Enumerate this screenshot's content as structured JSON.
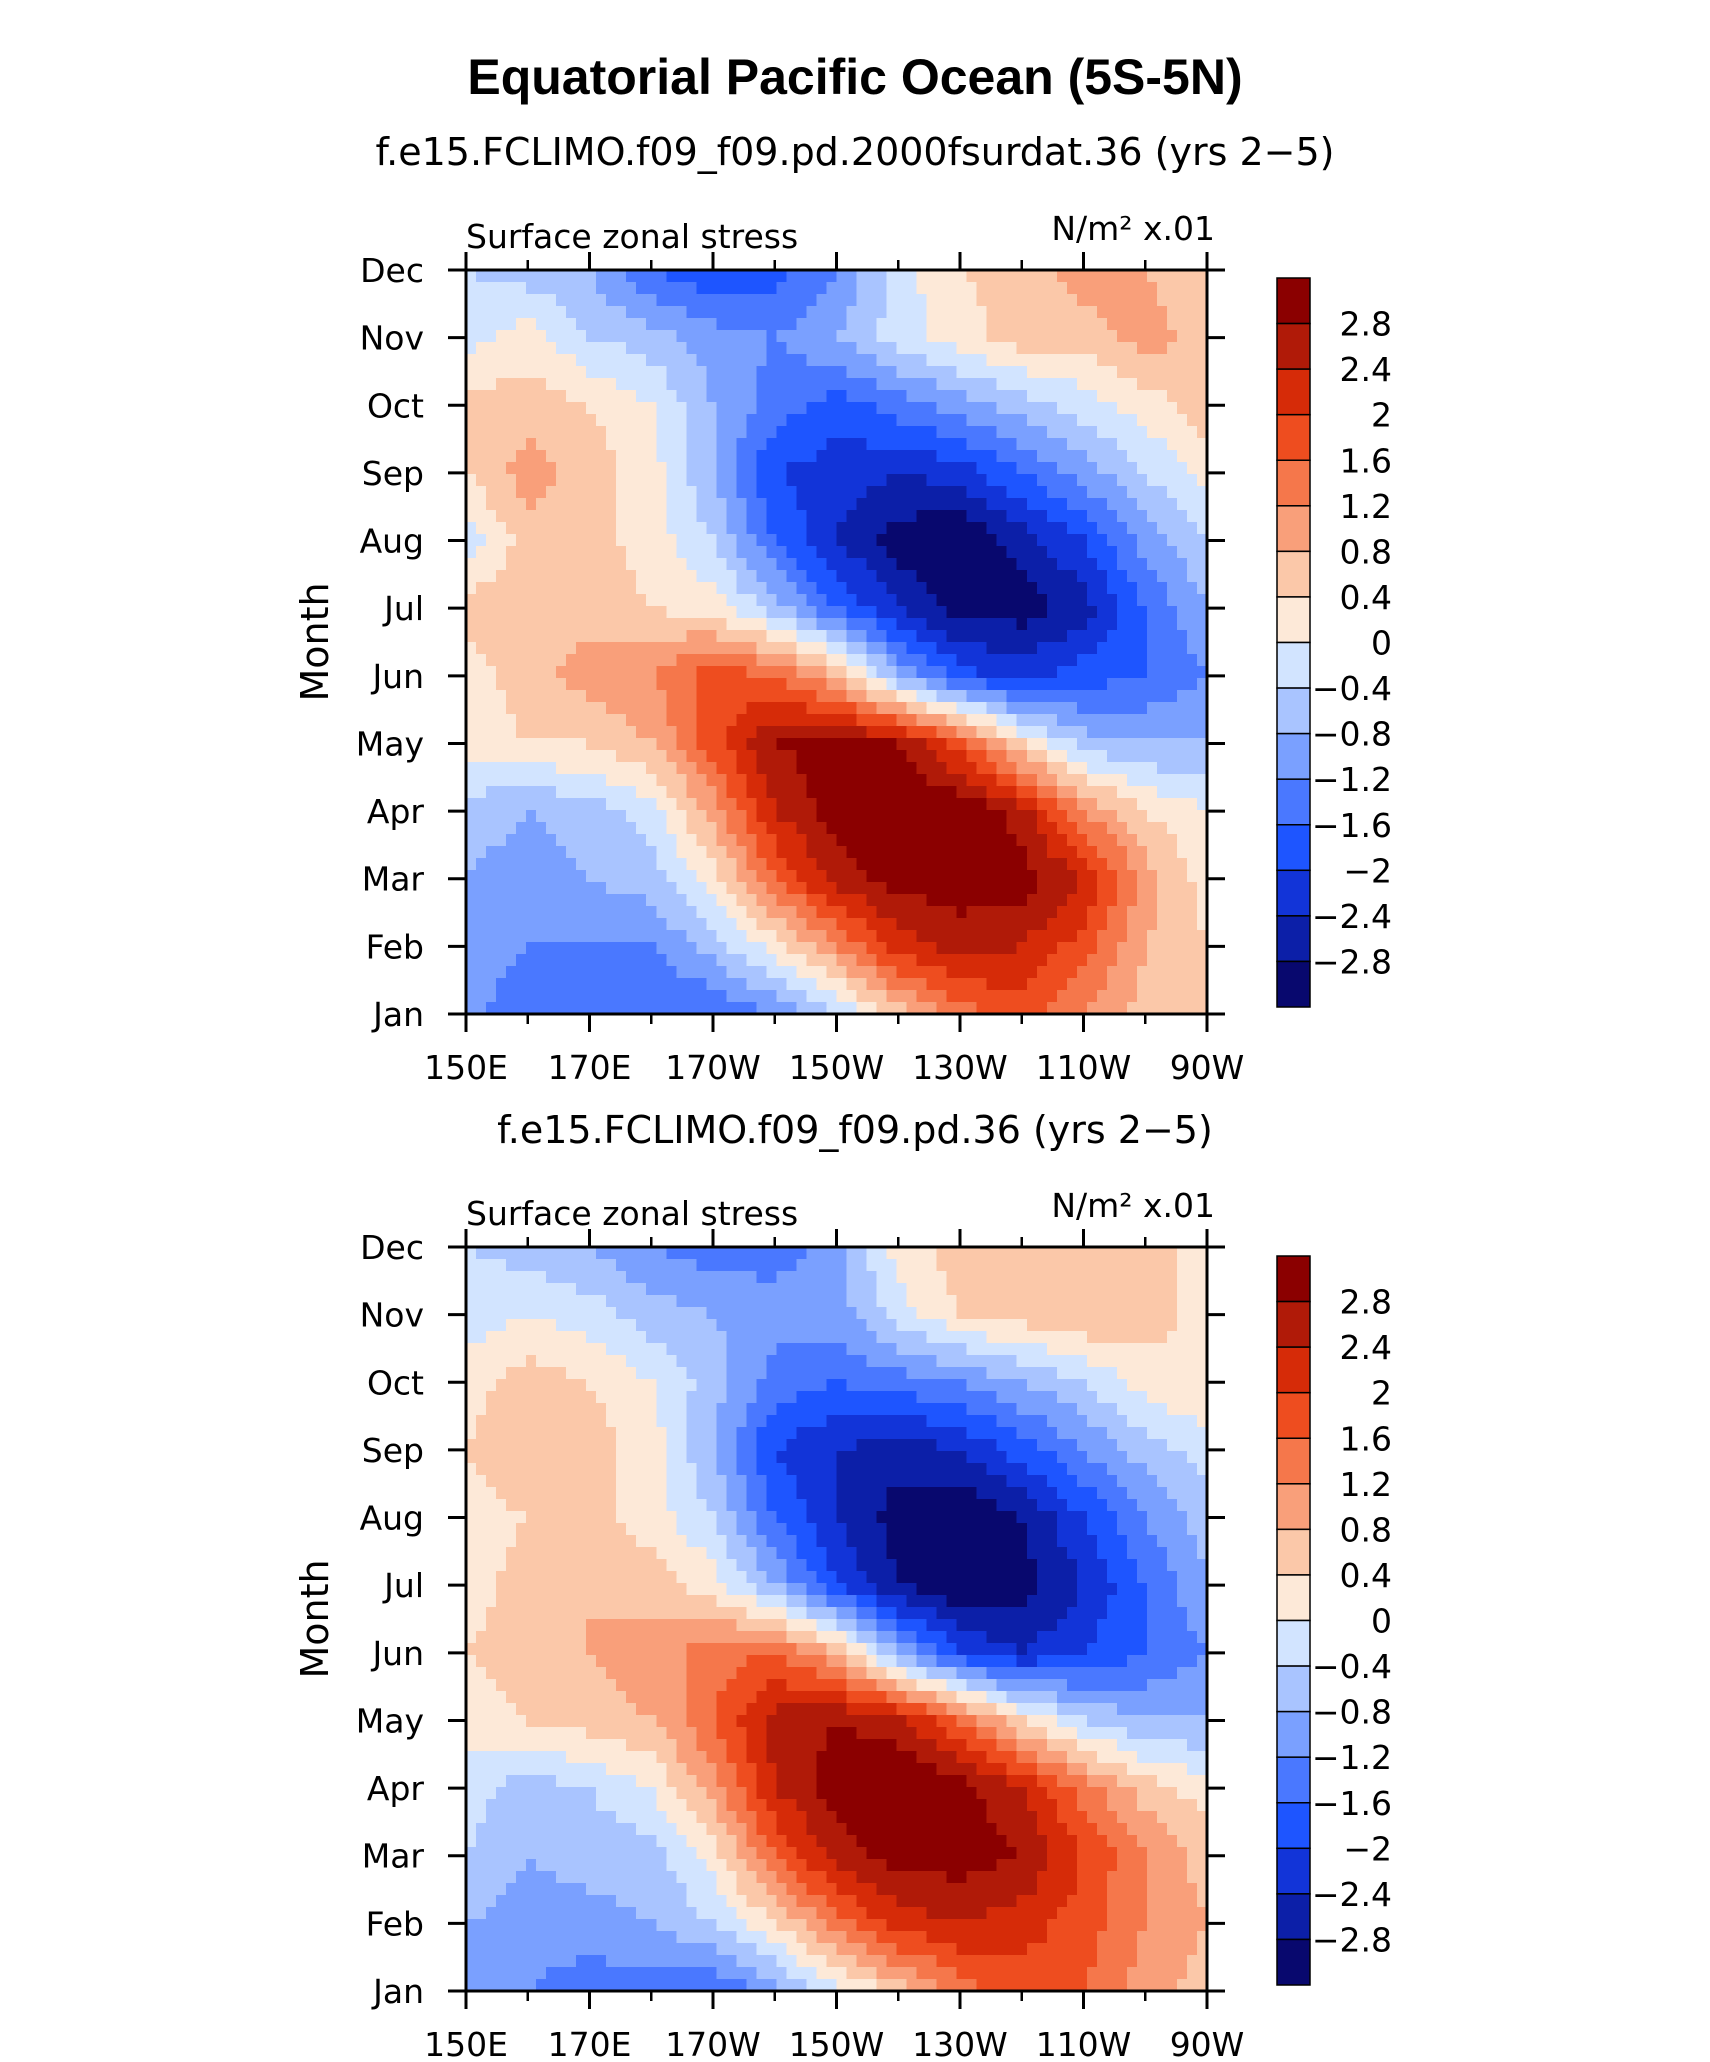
{
  "figure_title": "Equatorial Pacific Ocean (5S-5N)",
  "chart_data": [
    {
      "type": "heatmap",
      "title": "f.e15.FCLIMO.f09_f09.pd.2000fsurdat.36 (yrs 2−5)",
      "left_label": "Surface zonal stress",
      "units_label": "N/m² x.01",
      "ylabel": "Month",
      "xlabel": "",
      "x": [
        150,
        160,
        170,
        180,
        190,
        200,
        210,
        220,
        230,
        240,
        250,
        260,
        270
      ],
      "x_units": "degrees east",
      "y": [
        "Jan",
        "Feb",
        "Mar",
        "Apr",
        "May",
        "Jun",
        "Jul",
        "Aug",
        "Sep",
        "Oct",
        "Nov",
        "Dec"
      ],
      "x_tick_labels": [
        "150E",
        "170E",
        "170W",
        "150W",
        "130W",
        "110W",
        "90W"
      ],
      "y_tick_labels": [
        "Jan",
        "Feb",
        "Mar",
        "Apr",
        "May",
        "Jun",
        "Jul",
        "Aug",
        "Sep",
        "Oct",
        "Nov",
        "Dec"
      ],
      "z": [
        [
          -1.0,
          -1.6,
          -1.4,
          -1.6,
          -1.6,
          -1.2,
          -0.4,
          0.6,
          1.4,
          1.8,
          1.2,
          0.6,
          0.4
        ],
        [
          -0.8,
          -1.2,
          -1.2,
          -1.2,
          -0.6,
          0.2,
          1.2,
          2.2,
          2.6,
          2.4,
          1.8,
          0.8,
          0.4
        ],
        [
          -0.8,
          -1.0,
          -0.8,
          -0.6,
          0.2,
          1.6,
          2.6,
          3.0,
          3.0,
          3.0,
          2.4,
          1.0,
          0.2
        ],
        [
          -0.6,
          -0.8,
          -0.6,
          -0.2,
          1.0,
          2.4,
          3.0,
          3.2,
          3.2,
          2.6,
          1.2,
          0.4,
          0.0
        ],
        [
          0.2,
          0.4,
          0.4,
          0.8,
          1.8,
          2.8,
          3.0,
          2.8,
          1.8,
          0.4,
          -0.6,
          -0.8,
          -0.8
        ],
        [
          0.2,
          0.6,
          1.0,
          1.2,
          1.8,
          1.6,
          0.8,
          -0.8,
          -1.8,
          -2.2,
          -1.8,
          -1.6,
          -1.2
        ],
        [
          0.6,
          0.6,
          0.6,
          0.4,
          0.2,
          -0.6,
          -1.6,
          -2.4,
          -3.0,
          -3.0,
          -2.6,
          -1.6,
          -0.8
        ],
        [
          -0.2,
          0.6,
          0.6,
          0.2,
          -0.4,
          -1.6,
          -2.4,
          -3.0,
          -3.2,
          -2.6,
          -2.0,
          -1.0,
          -0.4
        ],
        [
          0.4,
          1.0,
          0.6,
          0.2,
          -0.8,
          -2.0,
          -2.2,
          -2.4,
          -2.2,
          -1.6,
          -1.0,
          -0.4,
          0.2
        ],
        [
          0.6,
          0.6,
          0.4,
          0.0,
          -0.8,
          -1.4,
          -1.8,
          -1.4,
          -1.0,
          -0.6,
          -0.2,
          0.2,
          0.6
        ],
        [
          -0.2,
          0.2,
          -0.4,
          -0.6,
          -1.0,
          -1.2,
          -0.8,
          -0.2,
          0.2,
          0.6,
          0.6,
          1.0,
          0.6
        ],
        [
          -0.4,
          -0.6,
          -0.8,
          -1.6,
          -2.0,
          -1.8,
          -1.2,
          -0.2,
          0.4,
          0.6,
          1.0,
          0.8,
          0.4
        ]
      ],
      "colorbar_levels": [
        -2.8,
        -2.4,
        -2,
        -1.6,
        -1.2,
        -0.8,
        -0.4,
        0,
        0.4,
        0.8,
        1.2,
        1.6,
        2,
        2.4,
        2.8
      ],
      "colorbar_labels": [
        "2.8",
        "2.4",
        "2",
        "1.6",
        "1.2",
        "0.8",
        "0.4",
        "0",
        "−0.4",
        "−0.8",
        "−1.2",
        "−1.6",
        "−2",
        "−2.4",
        "−2.8"
      ]
    },
    {
      "type": "heatmap",
      "title": "f.e15.FCLIMO.f09_f09.pd.36 (yrs 2−5)",
      "left_label": "Surface zonal stress",
      "units_label": "N/m² x.01",
      "ylabel": "Month",
      "xlabel": "",
      "x": [
        150,
        160,
        170,
        180,
        190,
        200,
        210,
        220,
        230,
        240,
        250,
        260,
        270
      ],
      "x_units": "degrees east",
      "y": [
        "Jan",
        "Feb",
        "Mar",
        "Apr",
        "May",
        "Jun",
        "Jul",
        "Aug",
        "Sep",
        "Oct",
        "Nov",
        "Dec"
      ],
      "x_tick_labels": [
        "150E",
        "170E",
        "170W",
        "150W",
        "130W",
        "110W",
        "90W"
      ],
      "y_tick_labels": [
        "Jan",
        "Feb",
        "Mar",
        "Apr",
        "May",
        "Jun",
        "Jul",
        "Aug",
        "Sep",
        "Oct",
        "Nov",
        "Dec"
      ],
      "z": [
        [
          -1.0,
          -1.2,
          -1.4,
          -1.4,
          -1.6,
          -1.0,
          -0.2,
          0.6,
          1.4,
          1.8,
          1.6,
          1.0,
          0.6
        ],
        [
          -0.8,
          -1.0,
          -1.0,
          -0.8,
          -0.4,
          0.4,
          1.4,
          2.2,
          2.4,
          2.2,
          1.8,
          1.2,
          0.8
        ],
        [
          -0.4,
          -0.8,
          -0.6,
          -0.6,
          0.2,
          1.6,
          2.6,
          3.0,
          3.0,
          2.8,
          2.0,
          1.2,
          0.6
        ],
        [
          -0.2,
          -0.6,
          -0.4,
          0.0,
          1.0,
          2.4,
          3.0,
          3.2,
          3.0,
          2.4,
          1.4,
          0.6,
          0.2
        ],
        [
          0.2,
          0.4,
          0.6,
          0.8,
          1.6,
          2.6,
          2.8,
          2.6,
          1.6,
          0.4,
          -0.4,
          -0.8,
          -0.8
        ],
        [
          0.4,
          0.6,
          0.8,
          1.0,
          1.4,
          1.6,
          0.8,
          -0.8,
          -2.0,
          -2.4,
          -2.0,
          -1.6,
          -1.2
        ],
        [
          0.2,
          0.6,
          0.8,
          0.6,
          0.2,
          -0.8,
          -2.0,
          -2.8,
          -3.2,
          -3.0,
          -2.4,
          -1.6,
          -0.8
        ],
        [
          0.2,
          0.4,
          0.6,
          0.2,
          -0.4,
          -1.6,
          -2.4,
          -3.0,
          -3.2,
          -2.8,
          -2.0,
          -1.2,
          -0.6
        ],
        [
          0.4,
          0.8,
          0.6,
          0.2,
          -0.8,
          -2.0,
          -2.4,
          -2.6,
          -2.4,
          -1.8,
          -1.2,
          -0.6,
          -0.2
        ],
        [
          0.2,
          0.6,
          0.4,
          0.0,
          -0.6,
          -1.4,
          -1.6,
          -1.4,
          -1.2,
          -0.8,
          -0.4,
          0.2,
          0.4
        ],
        [
          -0.2,
          0.0,
          -0.2,
          -0.6,
          -0.8,
          -1.0,
          -1.0,
          -0.2,
          0.4,
          0.6,
          0.8,
          0.6,
          0.2
        ],
        [
          -0.4,
          -0.6,
          -0.8,
          -1.2,
          -1.4,
          -1.4,
          -1.0,
          0.2,
          0.6,
          0.8,
          0.8,
          0.6,
          0.2
        ]
      ],
      "colorbar_levels": [
        -2.8,
        -2.4,
        -2,
        -1.6,
        -1.2,
        -0.8,
        -0.4,
        0,
        0.4,
        0.8,
        1.2,
        1.6,
        2,
        2.4,
        2.8
      ],
      "colorbar_labels": [
        "2.8",
        "2.4",
        "2",
        "1.6",
        "1.2",
        "0.8",
        "0.4",
        "0",
        "−0.4",
        "−0.8",
        "−1.2",
        "−1.6",
        "−2",
        "−2.4",
        "−2.8"
      ]
    }
  ],
  "colors": {
    "palette": [
      "#08086e",
      "#0c1fa8",
      "#1234d8",
      "#1e55ff",
      "#4a78ff",
      "#7aa0ff",
      "#a9c4ff",
      "#d2e4ff",
      "#fde9d8",
      "#fbc8a9",
      "#f99f7a",
      "#f5774b",
      "#ee4d1f",
      "#d62b08",
      "#b01a08",
      "#8b0000"
    ],
    "axis": "#000000"
  }
}
